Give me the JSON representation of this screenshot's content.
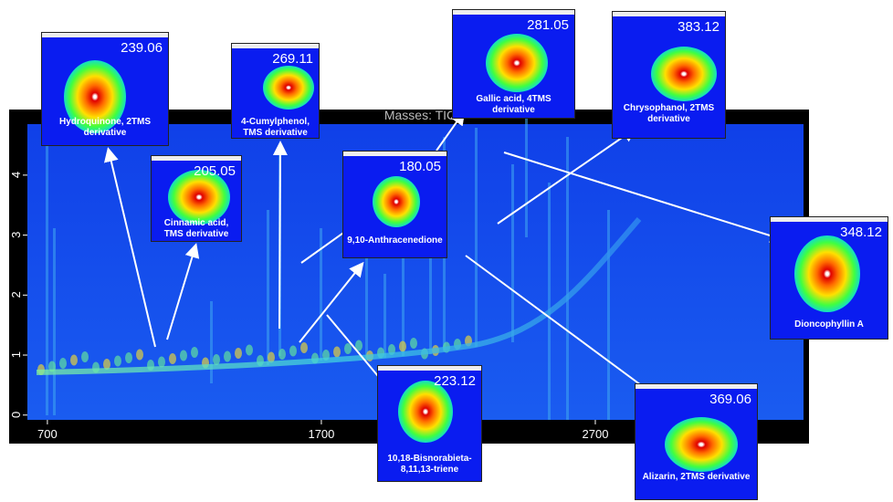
{
  "plot": {
    "title": "Masses: TIC",
    "xlim": [
      627,
      3460
    ],
    "xticks": [
      700,
      1700,
      2700
    ],
    "ylim": [
      -0.08,
      4.85
    ],
    "yticks": [
      0,
      1,
      2,
      3,
      4
    ]
  },
  "insets": [
    {
      "mass": 239.06,
      "label": "Hydroquinone, 2TMS derivative"
    },
    {
      "mass": 205.05,
      "label": "Cinnamic acid, TMS derivative"
    },
    {
      "mass": 269.11,
      "label": "4-Cumylphenol, TMS derivative"
    },
    {
      "mass": 180.05,
      "label": "9,10-Anthracenedione"
    },
    {
      "mass": 281.05,
      "label": "Gallic acid, 4TMS derivative"
    },
    {
      "mass": 383.12,
      "label": "Chrysophanol, 2TMS derivative"
    },
    {
      "mass": 348.12,
      "label": "Dioncophyllin A"
    },
    {
      "mass": 223.12,
      "label": "10,18-Bisnorabieta-8,11,13-triene"
    },
    {
      "mass": 369.06,
      "label": "Alizarin, 2TMS derivative"
    }
  ]
}
